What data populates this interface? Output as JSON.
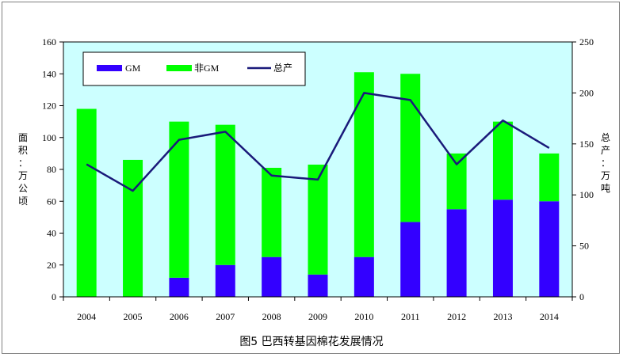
{
  "chart_data": {
    "type": "bar",
    "categories": [
      "2004",
      "2005",
      "2006",
      "2007",
      "2008",
      "2009",
      "2010",
      "2011",
      "2012",
      "2013",
      "2014"
    ],
    "series": [
      {
        "name": "GM",
        "kind": "bar-stacked",
        "axis": "left",
        "color": "#3300ff",
        "values": [
          0,
          0,
          12,
          20,
          25,
          14,
          25,
          47,
          55,
          61,
          60
        ]
      },
      {
        "name": "非GM",
        "kind": "bar-stacked",
        "axis": "left",
        "color": "#00ff00",
        "values": [
          118,
          86,
          98,
          88,
          56,
          69,
          116,
          93,
          35,
          49,
          30
        ]
      },
      {
        "name": "总产",
        "kind": "line",
        "axis": "right",
        "color": "#1a1a7a",
        "values": [
          130,
          104,
          154,
          162,
          119,
          115,
          200,
          193,
          130,
          173,
          146
        ]
      }
    ],
    "ylabel_left": "面积：万公顷",
    "ylabel_right": "总产：万吨",
    "ylim_left": [
      0,
      160
    ],
    "yticks_left": [
      0,
      20,
      40,
      60,
      80,
      100,
      120,
      140,
      160
    ],
    "ylim_right": [
      0,
      250
    ],
    "yticks_right": [
      0,
      50,
      100,
      150,
      200,
      250
    ],
    "plot_background": "#ccffff",
    "legend_position": "top-left",
    "grid": false,
    "caption": "图5  巴西转基因棉花发展情况"
  }
}
